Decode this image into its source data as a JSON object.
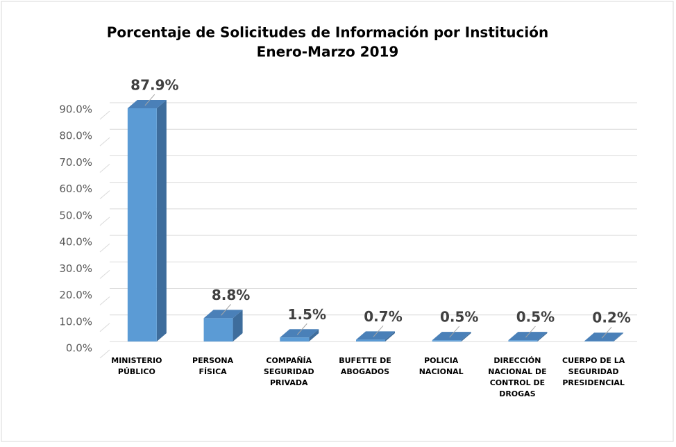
{
  "chart_data": {
    "type": "bar3d",
    "title": [
      "Porcentaje de Solicitudes de Información por Institución",
      "Enero-Marzo 2019"
    ],
    "categories": [
      [
        "MINISTERIO",
        "PÚBLICO"
      ],
      [
        "PERSONA",
        "FÍSICA"
      ],
      [
        "COMPAÑÍA",
        "SEGURIDAD",
        "PRIVADA"
      ],
      [
        "BUFETTE DE",
        "ABOGADOS"
      ],
      [
        "POLICIA",
        "NACIONAL"
      ],
      [
        "DIRECCIÓN",
        "NACIONAL DE",
        "CONTROL DE",
        "DROGAS"
      ],
      [
        "CUERPO DE LA",
        "SEGURIDAD",
        "PRESIDENCIAL"
      ]
    ],
    "values": [
      87.9,
      8.8,
      1.5,
      0.7,
      0.5,
      0.5,
      0.2
    ],
    "value_labels": [
      "87.9%",
      "8.8%",
      "1.5%",
      "0.7%",
      "0.5%",
      "0.5%",
      "0.2%"
    ],
    "color": "#5b9bd5",
    "ylim": [
      0,
      90
    ],
    "yticks": [
      {
        "value": 0,
        "label": "0.0%"
      },
      {
        "value": 10,
        "label": "10.0%"
      },
      {
        "value": 20,
        "label": "20.0%"
      },
      {
        "value": 30,
        "label": "30.0%"
      },
      {
        "value": 40,
        "label": "40.0%"
      },
      {
        "value": 50,
        "label": "50.0%"
      },
      {
        "value": 60,
        "label": "60.0%"
      },
      {
        "value": 70,
        "label": "70.0%"
      },
      {
        "value": 80,
        "label": "80.0%"
      },
      {
        "value": 90,
        "label": "90.0%"
      }
    ],
    "grid": true
  }
}
